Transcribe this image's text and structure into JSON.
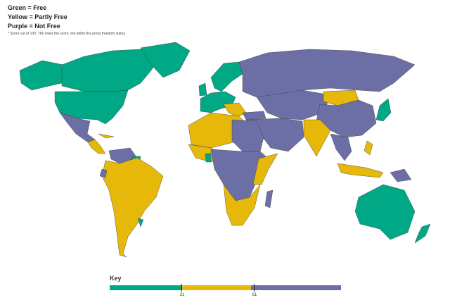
{
  "legend": {
    "lines": [
      "Green = Free",
      "Yellow = Partly Free",
      "Purple = Not Free"
    ],
    "note": "* Score out of 100. The lower the score, the better the press freedom status."
  },
  "colors": {
    "free": "#00a886",
    "partly_free": "#e6b809",
    "not_free": "#6b6fa5"
  },
  "key": {
    "title": "Key",
    "range": [
      0,
      100
    ],
    "thresholds": [
      31,
      61
    ],
    "tick_labels": [
      "31",
      "61"
    ]
  }
}
